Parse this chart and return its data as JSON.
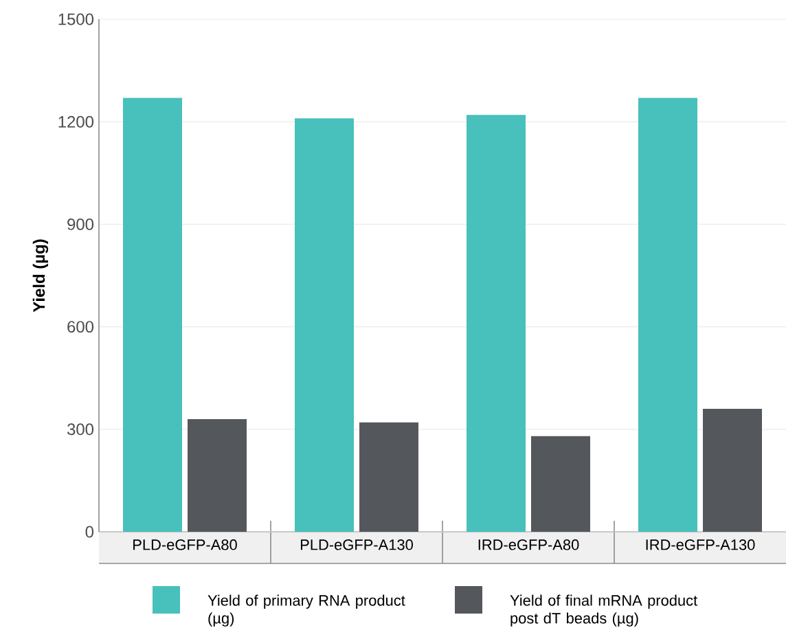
{
  "chart_data": {
    "type": "bar",
    "ylabel": "Yield (µg)",
    "categories": [
      "PLD-eGFP-A80",
      "PLD-eGFP-A130",
      "IRD-eGFP-A80",
      "IRD-eGFP-A130"
    ],
    "series": [
      {
        "name": "Yield of primary RNA product (µg)",
        "color": "#48c0bb",
        "values": [
          1270,
          1210,
          1220,
          1270
        ]
      },
      {
        "name": "Yield of final mRNA product post dT beads (µg)",
        "color": "#54575b",
        "values": [
          330,
          320,
          280,
          360
        ]
      }
    ],
    "ylim": [
      0,
      1500
    ],
    "yticks": [
      0,
      300,
      600,
      900,
      1200,
      1500
    ],
    "grid": "y",
    "legend": "bottom"
  }
}
